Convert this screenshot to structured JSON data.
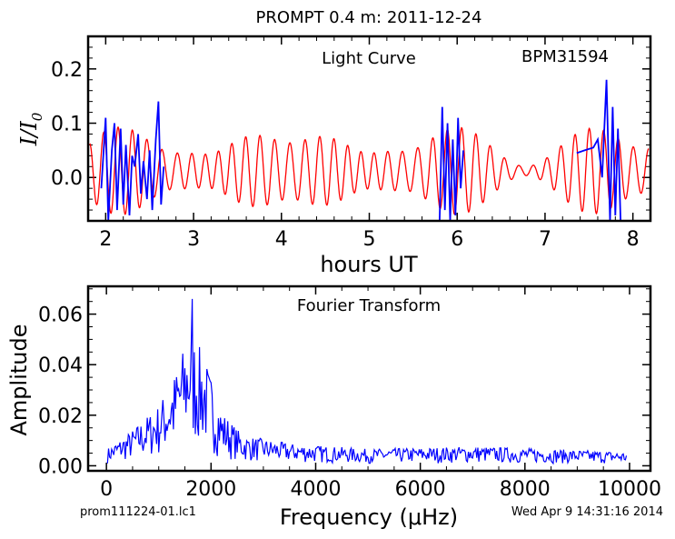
{
  "title": "PROMPT 0.4 m:  2011-12-24",
  "footer": {
    "left": "prom111224-01.lc1",
    "right": "Wed Apr  9 14:31:16 2014"
  },
  "colors": {
    "model": "#ff0000",
    "data": "#0000ff",
    "axes": "#000000"
  },
  "chart_data": [
    {
      "type": "line",
      "annotation_left": "Light Curve",
      "annotation_right": "BPM31594",
      "xlabel": "hours UT",
      "ylabel": "I/I0",
      "xlim": [
        1.8,
        8.2
      ],
      "ylim": [
        -0.08,
        0.26
      ],
      "xticks": [
        "2",
        "3",
        "4",
        "5",
        "6",
        "7",
        "8"
      ],
      "yticks": [
        "0.0",
        "0.1",
        "0.2"
      ],
      "model_curve": {
        "color": "#ff0000",
        "t_start": 1.82,
        "t_end": 8.18,
        "frequencies_per_hour": [
          6.15,
          5.6,
          6.9
        ],
        "amplitudes": [
          0.045,
          0.022,
          0.015
        ],
        "phases": [
          0.4,
          1.9,
          3.1
        ],
        "offset": 0.012
      },
      "data_segments": [
        {
          "color": "#0000ff",
          "t": [
            1.95,
            2.0,
            2.03,
            2.07,
            2.1,
            2.13,
            2.17,
            2.2,
            2.23,
            2.27,
            2.3,
            2.33,
            2.37,
            2.4,
            2.43,
            2.47,
            2.5,
            2.53,
            2.57,
            2.6,
            2.63,
            2.66
          ],
          "y": [
            -0.02,
            0.11,
            -0.08,
            0.05,
            0.1,
            -0.06,
            0.09,
            -0.05,
            0.06,
            -0.07,
            0.04,
            0.02,
            0.08,
            -0.03,
            0.03,
            -0.04,
            0.05,
            -0.06,
            0.07,
            0.14,
            -0.05,
            0.02
          ]
        },
        {
          "color": "#0000ff",
          "t": [
            5.8,
            5.83,
            5.86,
            5.89,
            5.92,
            5.95,
            5.98,
            6.01,
            6.04,
            6.07
          ],
          "y": [
            -0.08,
            0.13,
            -0.06,
            0.1,
            -0.08,
            0.07,
            -0.07,
            0.11,
            -0.02,
            0.05
          ]
        },
        {
          "color": "#0000ff",
          "t": [
            7.36,
            7.45,
            7.55,
            7.6,
            7.65,
            7.7,
            7.74,
            7.77,
            7.8,
            7.83,
            7.86
          ],
          "y": [
            0.045,
            0.05,
            0.055,
            0.07,
            0.0,
            0.18,
            -0.08,
            0.13,
            -0.07,
            0.09,
            -0.08
          ]
        }
      ]
    },
    {
      "type": "line",
      "annotation": "Fourier Transform",
      "xlabel": "Frequency (μHz)",
      "ylabel": "Amplitude",
      "xlim": [
        -350,
        10400
      ],
      "ylim": [
        -0.002,
        0.071
      ],
      "xticks": [
        "0",
        "2000",
        "4000",
        "6000",
        "8000",
        "10000"
      ],
      "yticks": [
        "0.00",
        "0.02",
        "0.04",
        "0.06"
      ],
      "spectrum": {
        "color": "#0000ff",
        "f_start": 20,
        "f_end": 9950,
        "step": 20,
        "envelope_hz": [
          0,
          500,
          1000,
          1300,
          1600,
          1900,
          2200,
          2600,
          3500,
          5000,
          7000,
          8500,
          10000
        ],
        "envelope_amp": [
          0.006,
          0.013,
          0.022,
          0.033,
          0.05,
          0.038,
          0.02,
          0.011,
          0.008,
          0.006,
          0.007,
          0.006,
          0.005
        ],
        "peak_hz": 1640,
        "peak_amp": 0.066
      }
    }
  ]
}
